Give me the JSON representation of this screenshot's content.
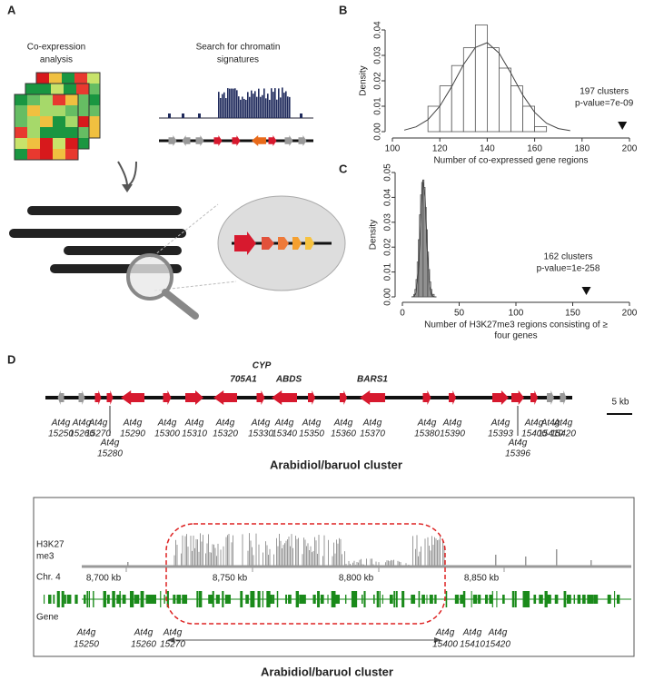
{
  "panel_labels": [
    "A",
    "B",
    "C",
    "D"
  ],
  "panel_a": {
    "coexpression": [
      "Co-expression",
      "analysis"
    ],
    "chromatin": [
      "Search for chromatin",
      "signatures"
    ]
  },
  "chart_data": [
    {
      "type": "histogram",
      "ylabel": "Density",
      "xlabel": [
        "Number of co-expressed gene regions"
      ],
      "bins": [
        115,
        120,
        125,
        130,
        135,
        140,
        145,
        150,
        155,
        160,
        165
      ],
      "values": [
        0.01,
        0.018,
        0.026,
        0.033,
        0.042,
        0.033,
        0.025,
        0.018,
        0.01,
        0.002
      ],
      "color": "#ffffff",
      "edge_color": "#555555",
      "xlim": [
        100,
        200
      ],
      "xticks": [
        100,
        120,
        140,
        160,
        180,
        200
      ],
      "ylim": [
        0,
        0.04
      ],
      "yticks": [
        {
          "value": 0,
          "label": "0.00"
        },
        {
          "value": 0.01,
          "label": "0.01"
        },
        {
          "value": 0.02,
          "label": "0.02"
        },
        {
          "value": 0.03,
          "label": "0.03"
        },
        {
          "value": 0.04,
          "label": "0.04"
        }
      ],
      "curve": {
        "x": [
          105,
          110,
          115,
          120,
          125,
          130,
          135,
          140,
          145,
          150,
          155,
          160,
          165,
          170,
          175
        ],
        "values": [
          0.0006,
          0.0019,
          0.0047,
          0.01,
          0.0177,
          0.0264,
          0.0331,
          0.035,
          0.0309,
          0.023,
          0.0144,
          0.0076,
          0.0033,
          0.0012,
          0.0004
        ]
      },
      "marker": {
        "x": 197,
        "label": [
          "197 clusters",
          "p-value=7e-09"
        ]
      }
    },
    {
      "type": "histogram",
      "ylabel": "Density",
      "xlabel": [
        "Number of H3K27me3 regions consisting of ≥",
        "four genes"
      ],
      "bins": [
        10,
        11,
        12,
        13,
        14,
        15,
        16,
        17,
        18,
        19,
        20,
        21,
        22,
        23,
        24,
        25,
        26,
        27,
        28,
        29,
        30
      ],
      "values": [
        0.001,
        0.003,
        0.007,
        0.014,
        0.023,
        0.033,
        0.041,
        0.046,
        0.047,
        0.044,
        0.036,
        0.027,
        0.018,
        0.011,
        0.006,
        0.003,
        0.001,
        0.001,
        0,
        0
      ],
      "color": "#ffffff",
      "edge_color": "#555555",
      "xlim": [
        0,
        200
      ],
      "xticks": [
        0,
        50,
        100,
        150,
        200
      ],
      "ylim": [
        0,
        0.05
      ],
      "yticks": [
        {
          "value": 0,
          "label": "0.00"
        },
        {
          "value": 0.01,
          "label": "0.01"
        },
        {
          "value": 0.02,
          "label": "0.02"
        },
        {
          "value": 0.03,
          "label": "0.03"
        },
        {
          "value": 0.04,
          "label": "0.04"
        },
        {
          "value": 0.05,
          "label": "0.05"
        }
      ],
      "curve": {
        "x": [
          8,
          10,
          12,
          14,
          16,
          18,
          20,
          22,
          24,
          26,
          28,
          30
        ],
        "values": [
          0,
          0.0001,
          0.0016,
          0.0095,
          0.0291,
          0.047,
          0.0401,
          0.018,
          0.0043,
          0.0005,
          0,
          0
        ]
      },
      "marker": {
        "x": 162,
        "label": [
          "162 clusters",
          "p-value=1e-258"
        ]
      }
    }
  ],
  "panel_d": {
    "gene_names": [
      "CYP",
      "705A1",
      "ABDS",
      "BARS1"
    ],
    "genes": [
      {
        "locus": "At4g",
        "id": "15250"
      },
      {
        "locus": "At4g",
        "id": "15260"
      },
      {
        "locus": "At4g",
        "id": "15270"
      },
      {
        "locus": "At4g",
        "id": "15280"
      },
      {
        "locus": "At4g",
        "id": "15290"
      },
      {
        "locus": "At4g",
        "id": "15300"
      },
      {
        "locus": "At4g",
        "id": "15310"
      },
      {
        "locus": "At4g",
        "id": "15320"
      },
      {
        "locus": "At4g",
        "id": "15330"
      },
      {
        "locus": "At4g",
        "id": "15340"
      },
      {
        "locus": "At4g",
        "id": "15350"
      },
      {
        "locus": "At4g",
        "id": "15360"
      },
      {
        "locus": "At4g",
        "id": "15370"
      },
      {
        "locus": "At4g",
        "id": "15380"
      },
      {
        "locus": "At4g",
        "id": "15390"
      },
      {
        "locus": "At4g",
        "id": "15393"
      },
      {
        "locus": "At4g",
        "id": "15396"
      },
      {
        "locus": "At4g",
        "id": "15400"
      },
      {
        "locus": "At4g",
        "id": "15410"
      },
      {
        "locus": "At4g",
        "id": "15420"
      }
    ],
    "scale": "5 kb",
    "cluster": "Arabidiol/baruol cluster",
    "track": {
      "signal": [
        "H3K27",
        "me3"
      ],
      "chrom": "Chr. 4",
      "positions": [
        "8,700 kb",
        "8,750 kb",
        "8,800 kb",
        "8,850 kb"
      ],
      "gene_track": "Gene",
      "genes": [
        {
          "locus": "At4g",
          "id": "15250"
        },
        {
          "locus": "At4g",
          "id": "15260"
        },
        {
          "locus": "At4g",
          "id": "15270"
        },
        {
          "locus": "At4g",
          "id": "15400"
        },
        {
          "locus": "At4g",
          "id": "15410"
        },
        {
          "locus": "At4g",
          "id": "15420"
        }
      ],
      "cluster": "Arabidiol/baruol cluster"
    }
  }
}
